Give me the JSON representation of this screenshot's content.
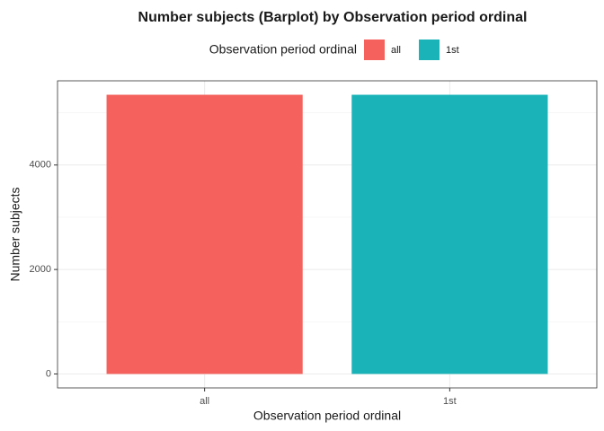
{
  "chart_data": {
    "type": "bar",
    "title": "Number subjects (Barplot) by Observation period ordinal",
    "legend_title": "Observation period ordinal",
    "x_label": "Observation period ordinal",
    "y_label": "Number subjects",
    "categories": [
      "all",
      "1st"
    ],
    "series": [
      {
        "name": "all",
        "color": "#F5615C",
        "values": [
          5345,
          null
        ]
      },
      {
        "name": "1st",
        "color": "#1AB4B8",
        "values": [
          null,
          5345
        ]
      }
    ],
    "ylim": [
      -267,
      5612
    ],
    "yticks": [
      0,
      2000,
      4000
    ],
    "grid": true,
    "legend": "top"
  }
}
